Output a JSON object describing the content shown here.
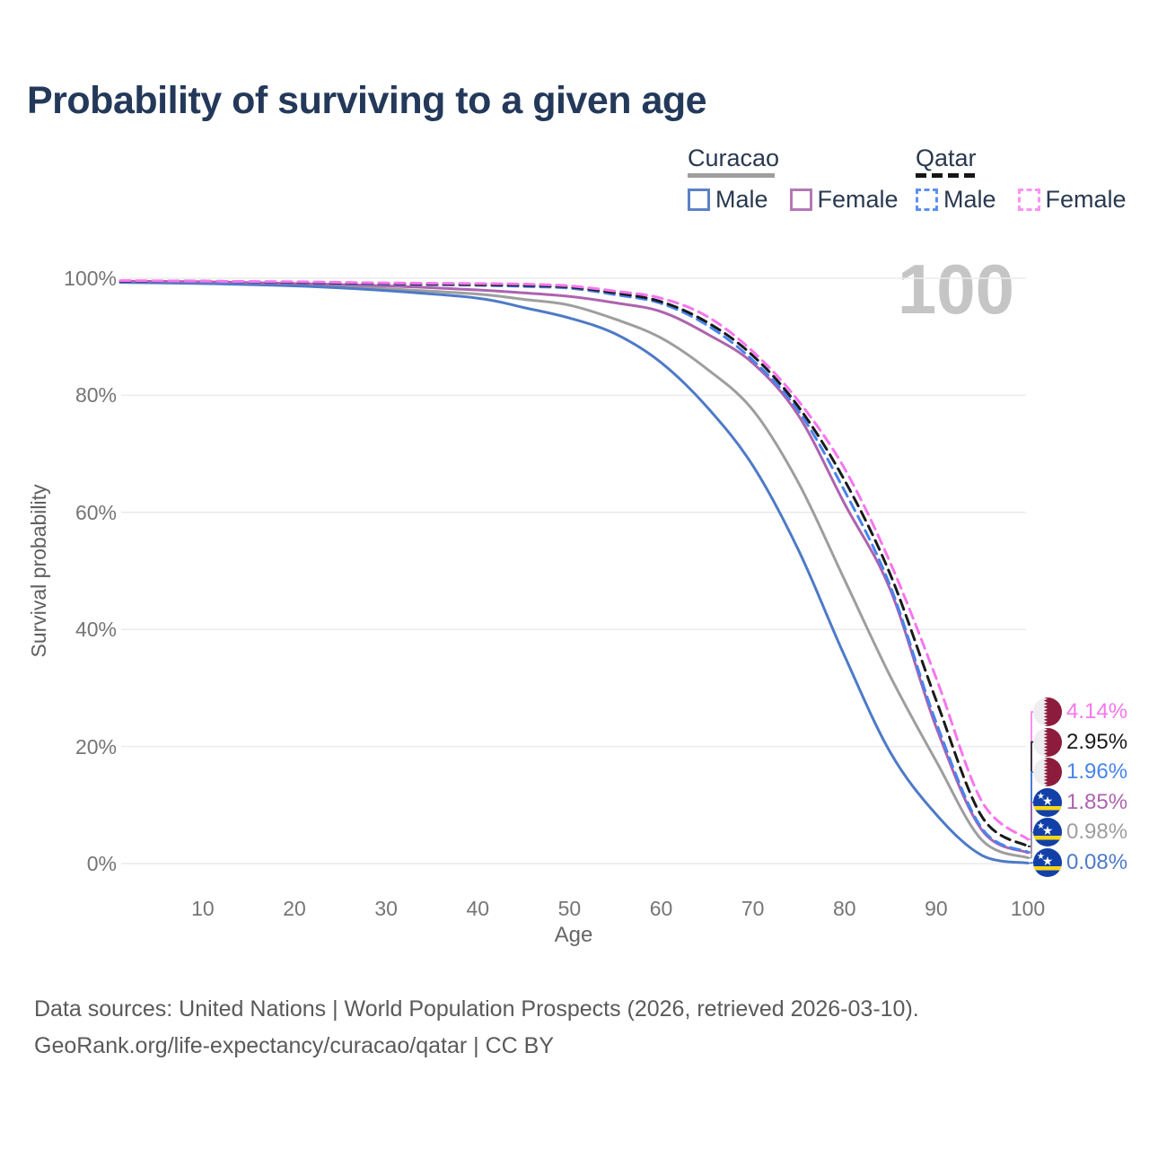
{
  "title": "Probability of surviving to a given age",
  "age_marker": "100",
  "legend": {
    "groups": [
      {
        "name": "Curacao",
        "line_style": "solid",
        "underline_color": "#9e9e9e",
        "items": [
          {
            "label": "Male",
            "color": "#5b82c6"
          },
          {
            "label": "Female",
            "color": "#b478b5"
          }
        ]
      },
      {
        "name": "Qatar",
        "line_style": "dashed",
        "underline_color": "#161616",
        "items": [
          {
            "label": "Male",
            "color": "#5d8ff2"
          },
          {
            "label": "Female",
            "color": "#f993f1"
          }
        ]
      }
    ]
  },
  "chart_data": {
    "type": "line",
    "title": "Probability of surviving to a given age",
    "xlabel": "Age",
    "ylabel": "Survival probability",
    "xlim": [
      1,
      100
    ],
    "ylim": [
      0,
      100
    ],
    "grid": "horizontal",
    "xticks": [
      10,
      20,
      30,
      40,
      50,
      60,
      70,
      80,
      90,
      100
    ],
    "yticks": [
      0,
      20,
      40,
      60,
      80,
      100
    ],
    "ytick_suffix": "%",
    "x": [
      1,
      10,
      20,
      30,
      40,
      45,
      50,
      55,
      60,
      65,
      70,
      75,
      80,
      85,
      90,
      95,
      100
    ],
    "series": [
      {
        "id": "curacao-combined",
        "name": "Curacao",
        "color": "#9e9e9e",
        "style": "solid",
        "values": [
          99.4,
          99.2,
          98.9,
          98.2,
          97.3,
          96.4,
          95.4,
          93.0,
          89.8,
          84.5,
          77.5,
          65.0,
          48.5,
          32.0,
          17.5,
          4.0,
          0.98
        ]
      },
      {
        "id": "curacao-male",
        "name": "Curacao Male",
        "color": "#4e7ac7",
        "style": "solid",
        "values": [
          99.3,
          99.1,
          98.7,
          97.9,
          96.6,
          95.0,
          93.2,
          90.5,
          85.6,
          78.0,
          68.0,
          53.5,
          35.5,
          19.0,
          8.4,
          1.4,
          0.08
        ]
      },
      {
        "id": "curacao-female",
        "name": "Curacao Female",
        "color": "#ad63ae",
        "style": "solid",
        "values": [
          99.5,
          99.4,
          99.1,
          98.7,
          98.0,
          97.5,
          96.9,
          95.8,
          94.3,
          90.5,
          85.5,
          76.5,
          61.5,
          46.8,
          23.3,
          5.7,
          1.85
        ]
      },
      {
        "id": "qatar-male",
        "name": "Qatar Male",
        "color": "#4784ee",
        "style": "dashed",
        "values": [
          99.5,
          99.4,
          99.2,
          99.0,
          98.8,
          98.6,
          98.3,
          97.2,
          95.7,
          92.0,
          86.0,
          77.3,
          63.7,
          47.4,
          24.1,
          6.0,
          1.96
        ]
      },
      {
        "id": "qatar-combined",
        "name": "Qatar",
        "color": "#1a1a1a",
        "style": "dashed",
        "values": [
          99.5,
          99.5,
          99.3,
          99.1,
          98.9,
          98.8,
          98.5,
          97.5,
          96.0,
          92.5,
          86.8,
          78.0,
          65.5,
          49.4,
          27.9,
          8.0,
          2.95
        ]
      },
      {
        "id": "qatar-female",
        "name": "Qatar Female",
        "color": "#f775ef",
        "style": "dashed",
        "values": [
          99.6,
          99.5,
          99.4,
          99.2,
          99.1,
          99.0,
          98.7,
          97.8,
          96.6,
          93.5,
          87.5,
          79.0,
          67.5,
          51.4,
          31.7,
          10.6,
          4.14
        ]
      }
    ]
  },
  "end_labels": [
    {
      "value": "4.14%",
      "pct": 4.14,
      "series": "Qatar Female",
      "color": "#f775ef",
      "flag": "qatar"
    },
    {
      "value": "2.95%",
      "pct": 2.95,
      "series": "Qatar",
      "color": "#1a1a1a",
      "flag": "qatar"
    },
    {
      "value": "1.96%",
      "pct": 1.96,
      "series": "Qatar Male",
      "color": "#4784ee",
      "flag": "qatar"
    },
    {
      "value": "1.85%",
      "pct": 1.85,
      "series": "Curacao Female",
      "color": "#ad63ae",
      "flag": "curacao"
    },
    {
      "value": "0.98%",
      "pct": 0.98,
      "series": "Curacao",
      "color": "#9e9e9e",
      "flag": "curacao"
    },
    {
      "value": "0.08%",
      "pct": 0.08,
      "series": "Curacao Male",
      "color": "#4e7ac7",
      "flag": "curacao"
    }
  ],
  "flag_colors": {
    "qatar_maroon": "#8d1b3d",
    "qatar_white": "#eeedf0",
    "curacao_blue": "#1240a8",
    "curacao_yellow": "#f9d616",
    "curacao_star": "#ffffff"
  },
  "footer": {
    "line1": "Data sources: United Nations | World Population Prospects (2026, retrieved 2026-03-10).",
    "line2": "GeoRank.org/life-expectancy/curacao/qatar | CC BY"
  }
}
